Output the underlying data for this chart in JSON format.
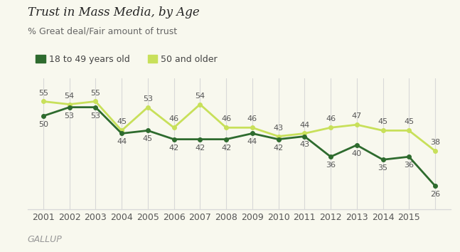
{
  "title": "Trust in Mass Media, by Age",
  "subtitle": "% Great deal/Fair amount of trust",
  "years": [
    2001,
    2002,
    2003,
    2004,
    2005,
    2006,
    2007,
    2008,
    2009,
    2010,
    2011,
    2012,
    2013,
    2014,
    2015,
    2016
  ],
  "series_18_49": [
    50,
    53,
    53,
    44,
    45,
    42,
    42,
    42,
    44,
    42,
    43,
    36,
    40,
    35,
    36,
    26
  ],
  "series_50plus": [
    55,
    54,
    55,
    45,
    53,
    46,
    54,
    46,
    46,
    43,
    44,
    46,
    47,
    45,
    45,
    38
  ],
  "color_18_49": "#2e6b2e",
  "color_50plus": "#c8e05a",
  "legend_18_49": "18 to 49 years old",
  "legend_50plus": "50 and older",
  "xlim_left": 2000.4,
  "xlim_right": 2016.6,
  "ylim_bottom": 18,
  "ylim_top": 63,
  "xtick_labels": [
    "2001",
    "2002",
    "2003",
    "2004",
    "2005",
    "2006",
    "2007",
    "2008",
    "2009",
    "2010",
    "2011",
    "2012",
    "2013",
    "2014",
    "2015",
    ""
  ],
  "xtick_positions": [
    2001,
    2002,
    2003,
    2004,
    2005,
    2006,
    2007,
    2008,
    2009,
    2010,
    2011,
    2012,
    2013,
    2014,
    2015,
    2016
  ],
  "background_color": "#f8f8ee",
  "grid_color": "#d8d8d8",
  "title_fontsize": 12,
  "subtitle_fontsize": 9,
  "label_fontsize": 9,
  "legend_fontsize": 9,
  "annotation_fontsize": 8,
  "gallup_text": "GALLUP"
}
